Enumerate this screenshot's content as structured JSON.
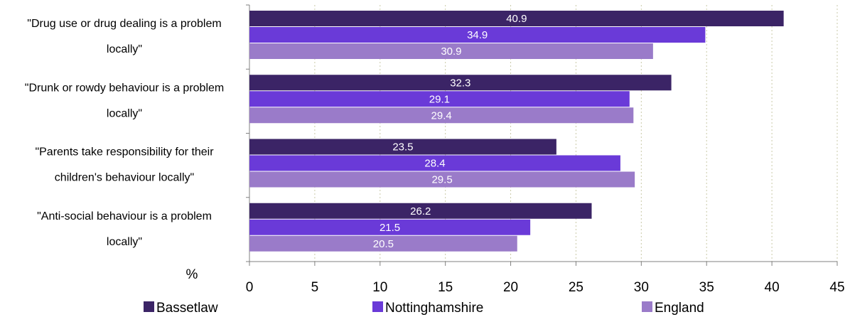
{
  "chart_data": {
    "type": "bar",
    "orientation": "horizontal",
    "categories": [
      [
        "\"Drug use or drug dealing is a problem",
        "locally\""
      ],
      [
        "\"Drunk or rowdy behaviour is a problem",
        "locally\""
      ],
      [
        "\"Parents take responsibility for their",
        "children's behaviour locally\""
      ],
      [
        "\"Anti-social behaviour is a problem",
        "locally\""
      ]
    ],
    "series": [
      {
        "name": "Bassetlaw",
        "color": "#3b2466",
        "values": [
          40.9,
          32.3,
          23.5,
          26.2
        ]
      },
      {
        "name": "Nottinghamshire",
        "color": "#6a3ad8",
        "values": [
          34.9,
          29.1,
          28.4,
          21.5
        ]
      },
      {
        "name": "England",
        "color": "#9a7bc9",
        "values": [
          30.9,
          29.4,
          29.5,
          20.5
        ]
      }
    ],
    "xlim": [
      0,
      45
    ],
    "xticks": [
      0,
      5,
      10,
      15,
      20,
      25,
      30,
      35,
      40,
      45
    ],
    "xlabel": "%",
    "grid": "vertical dotted",
    "legend": "bottom"
  }
}
